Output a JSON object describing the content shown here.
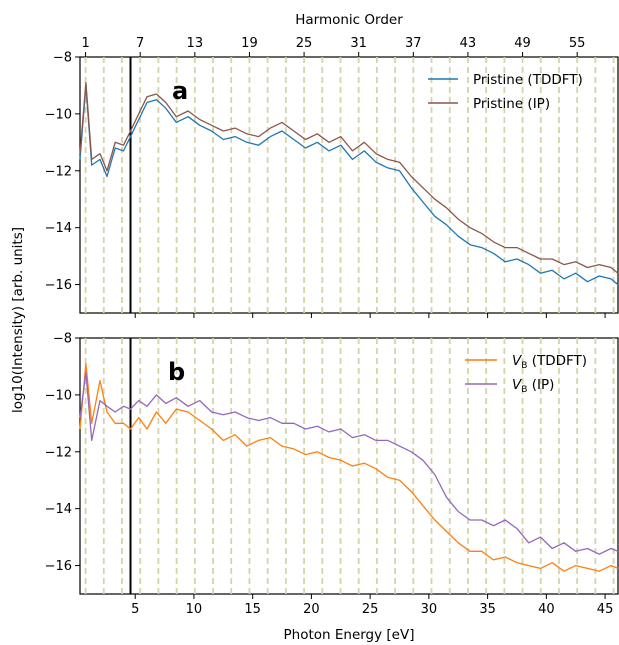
{
  "colors": {
    "tddft_pristine": "#1f77b4",
    "ip_pristine": "#8c564b",
    "tddft_vb": "#ff7f0e",
    "ip_vb": "#9467bd",
    "harmonic_lines": "#d6d3a8",
    "marker_line": "#000000"
  },
  "chart_data": [
    {
      "type": "line",
      "panel_label": "a",
      "xlabel": "",
      "ylabel": "log10(Intensity) [arb. units]",
      "top_axis_label": "Harmonic Order",
      "top_ticks": [
        1,
        7,
        13,
        19,
        25,
        31,
        37,
        43,
        49,
        55
      ],
      "xlim": [
        0.3,
        46.1
      ],
      "ylim": [
        -17,
        -8
      ],
      "x_ticks": [
        5,
        10,
        15,
        20,
        25,
        30,
        35,
        40,
        45
      ],
      "y_ticks": [
        -16,
        -14,
        -12,
        -10,
        -8
      ],
      "harmonic_spacing_eV": 0.775,
      "harmonic_lines_every_odd": true,
      "vertical_marker_x": 4.6,
      "legend_position": "top-right",
      "series": [
        {
          "name": "Pristine (TDDFT)",
          "color_key": "tddft_pristine",
          "x": [
            0.3,
            0.8,
            1.3,
            2.0,
            2.6,
            3.3,
            4.0,
            4.6,
            5.3,
            6.0,
            6.8,
            7.6,
            8.5,
            9.5,
            10.5,
            11.5,
            12.5,
            13.5,
            14.5,
            15.5,
            16.5,
            17.5,
            18.5,
            19.5,
            20.5,
            21.5,
            22.5,
            23.5,
            24.5,
            25.5,
            26.5,
            27.5,
            28.5,
            29.5,
            30.5,
            31.5,
            32.5,
            33.5,
            34.5,
            35.5,
            36.5,
            37.5,
            38.5,
            39.5,
            40.5,
            41.5,
            42.5,
            43.5,
            44.5,
            45.5,
            46.1
          ],
          "y": [
            -11.6,
            -9.0,
            -11.8,
            -11.6,
            -12.2,
            -11.2,
            -11.3,
            -10.8,
            -10.2,
            -9.6,
            -9.5,
            -9.8,
            -10.3,
            -10.1,
            -10.4,
            -10.6,
            -10.9,
            -10.8,
            -11.0,
            -11.1,
            -10.8,
            -10.6,
            -10.9,
            -11.2,
            -11.0,
            -11.3,
            -11.1,
            -11.6,
            -11.3,
            -11.7,
            -11.9,
            -12.0,
            -12.6,
            -13.1,
            -13.6,
            -13.9,
            -14.3,
            -14.6,
            -14.7,
            -14.9,
            -15.2,
            -15.1,
            -15.3,
            -15.6,
            -15.5,
            -15.8,
            -15.6,
            -15.9,
            -15.7,
            -15.8,
            -16.0
          ]
        },
        {
          "name": "Pristine (IP)",
          "color_key": "ip_pristine",
          "x": [
            0.3,
            0.8,
            1.3,
            2.0,
            2.6,
            3.3,
            4.0,
            4.6,
            5.3,
            6.0,
            6.8,
            7.6,
            8.5,
            9.5,
            10.5,
            11.5,
            12.5,
            13.5,
            14.5,
            15.5,
            16.5,
            17.5,
            18.5,
            19.5,
            20.5,
            21.5,
            22.5,
            23.5,
            24.5,
            25.5,
            26.5,
            27.5,
            28.5,
            29.5,
            30.5,
            31.5,
            32.5,
            33.5,
            34.5,
            35.5,
            36.5,
            37.5,
            38.5,
            39.5,
            40.5,
            41.5,
            42.5,
            43.5,
            44.5,
            45.5,
            46.1
          ],
          "y": [
            -11.4,
            -8.9,
            -11.6,
            -11.4,
            -12.0,
            -11.0,
            -11.1,
            -10.6,
            -10.0,
            -9.4,
            -9.3,
            -9.6,
            -10.1,
            -9.9,
            -10.2,
            -10.4,
            -10.6,
            -10.5,
            -10.7,
            -10.8,
            -10.5,
            -10.3,
            -10.6,
            -10.9,
            -10.7,
            -11.0,
            -10.8,
            -11.3,
            -11.0,
            -11.4,
            -11.6,
            -11.7,
            -12.2,
            -12.6,
            -13.0,
            -13.3,
            -13.7,
            -14.0,
            -14.2,
            -14.5,
            -14.7,
            -14.7,
            -14.9,
            -15.1,
            -15.1,
            -15.3,
            -15.2,
            -15.4,
            -15.3,
            -15.4,
            -15.6
          ]
        }
      ]
    },
    {
      "type": "line",
      "panel_label": "b",
      "xlabel": "Photon Energy [eV]",
      "ylabel": "",
      "xlim": [
        0.3,
        46.1
      ],
      "ylim": [
        -17,
        -8
      ],
      "x_ticks": [
        5,
        10,
        15,
        20,
        25,
        30,
        35,
        40,
        45
      ],
      "y_ticks": [
        -16,
        -14,
        -12,
        -10,
        -8
      ],
      "harmonic_spacing_eV": 0.775,
      "harmonic_lines_every_odd": true,
      "vertical_marker_x": 4.6,
      "legend_position": "top-right",
      "series": [
        {
          "name": "V_B (TDDFT)",
          "color_key": "tddft_vb",
          "x": [
            0.3,
            0.8,
            1.3,
            2.0,
            2.6,
            3.3,
            4.0,
            4.6,
            5.3,
            6.0,
            6.8,
            7.6,
            8.5,
            9.5,
            10.5,
            11.5,
            12.5,
            13.5,
            14.5,
            15.5,
            16.5,
            17.5,
            18.5,
            19.5,
            20.5,
            21.5,
            22.5,
            23.5,
            24.5,
            25.5,
            26.5,
            27.5,
            28.5,
            29.5,
            30.5,
            31.5,
            32.5,
            33.5,
            34.5,
            35.5,
            36.5,
            37.5,
            38.5,
            39.5,
            40.5,
            41.5,
            42.5,
            43.5,
            44.5,
            45.5,
            46.1
          ],
          "y": [
            -11.2,
            -8.9,
            -11.0,
            -9.5,
            -10.6,
            -11.0,
            -11.0,
            -11.2,
            -10.8,
            -11.2,
            -10.6,
            -11.0,
            -10.5,
            -10.6,
            -10.9,
            -11.2,
            -11.6,
            -11.4,
            -11.8,
            -11.6,
            -11.5,
            -11.8,
            -11.9,
            -12.1,
            -12.0,
            -12.2,
            -12.3,
            -12.5,
            -12.4,
            -12.6,
            -12.9,
            -13.0,
            -13.4,
            -13.9,
            -14.4,
            -14.8,
            -15.2,
            -15.5,
            -15.5,
            -15.8,
            -15.7,
            -15.9,
            -16.0,
            -16.1,
            -15.9,
            -16.2,
            -16.0,
            -16.1,
            -16.2,
            -16.0,
            -16.1
          ]
        },
        {
          "name": "V_B (IP)",
          "color_key": "ip_vb",
          "x": [
            0.3,
            0.8,
            1.3,
            2.0,
            2.6,
            3.3,
            4.0,
            4.6,
            5.3,
            6.0,
            6.8,
            7.6,
            8.5,
            9.5,
            10.5,
            11.5,
            12.5,
            13.5,
            14.5,
            15.5,
            16.5,
            17.5,
            18.5,
            19.5,
            20.5,
            21.5,
            22.5,
            23.5,
            24.5,
            25.5,
            26.5,
            27.5,
            28.5,
            29.5,
            30.5,
            31.5,
            32.5,
            33.5,
            34.5,
            35.5,
            36.5,
            37.5,
            38.5,
            39.5,
            40.5,
            41.5,
            42.5,
            43.5,
            44.5,
            45.5,
            46.1
          ],
          "y": [
            -10.8,
            -9.2,
            -11.6,
            -10.2,
            -10.4,
            -10.6,
            -10.4,
            -10.5,
            -10.2,
            -10.4,
            -10.0,
            -10.3,
            -10.1,
            -10.4,
            -10.2,
            -10.6,
            -10.7,
            -10.6,
            -10.8,
            -10.9,
            -10.8,
            -11.0,
            -11.0,
            -11.2,
            -11.1,
            -11.3,
            -11.2,
            -11.5,
            -11.4,
            -11.6,
            -11.6,
            -11.8,
            -12.0,
            -12.3,
            -12.8,
            -13.6,
            -14.1,
            -14.4,
            -14.4,
            -14.6,
            -14.4,
            -14.7,
            -15.2,
            -15.0,
            -15.4,
            -15.2,
            -15.5,
            -15.4,
            -15.6,
            -15.4,
            -15.5
          ]
        }
      ]
    }
  ]
}
